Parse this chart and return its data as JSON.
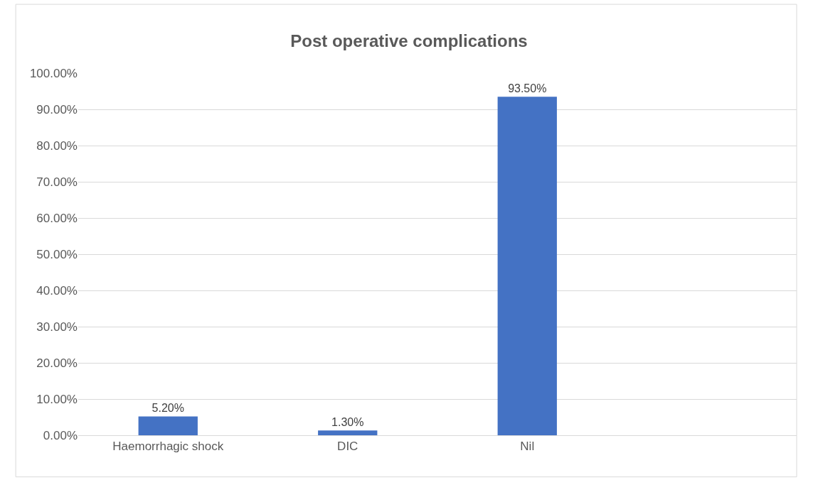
{
  "chart_data": {
    "type": "bar",
    "title": "Post operative complications",
    "categories": [
      "Haemorrhagic shock",
      "DIC",
      "Nil",
      null
    ],
    "values": [
      5.2,
      1.3,
      93.5,
      null
    ],
    "value_labels": [
      "5.20%",
      "1.30%",
      "93.50%",
      null
    ],
    "color": "#4472c4",
    "ylim": [
      0,
      100
    ],
    "yticks": [
      {
        "value": 0,
        "label": "0.00%"
      },
      {
        "value": 10,
        "label": "10.00%"
      },
      {
        "value": 20,
        "label": "20.00%"
      },
      {
        "value": 30,
        "label": "30.00%"
      },
      {
        "value": 40,
        "label": "40.00%"
      },
      {
        "value": 50,
        "label": "50.00%"
      },
      {
        "value": 60,
        "label": "60.00%"
      },
      {
        "value": 70,
        "label": "70.00%"
      },
      {
        "value": 80,
        "label": "80.00%"
      },
      {
        "value": 90,
        "label": "90.00%"
      },
      {
        "value": 100,
        "label": "100.00%"
      }
    ],
    "grid": "y"
  }
}
